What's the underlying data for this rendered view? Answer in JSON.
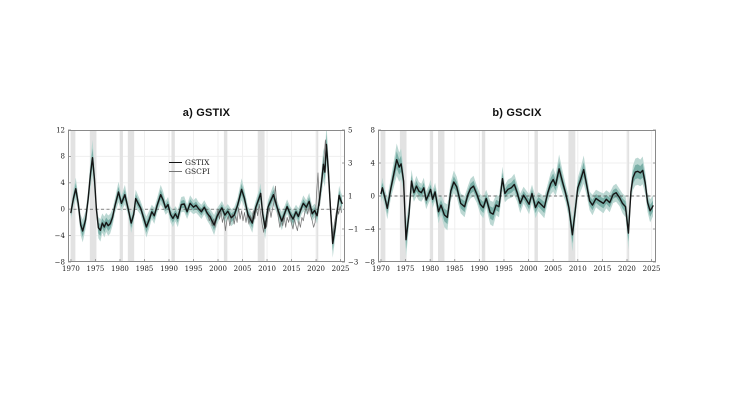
{
  "figure": {
    "background": "#ffffff"
  },
  "colors": {
    "line_black": "#141414",
    "line_gray": "#757575",
    "band_inner": "#7aafa7",
    "band_outer": "#bcd8d3",
    "recession": "#e2e2e2",
    "grid": "#efefef",
    "axis_box": "#8a8a8a",
    "zero_line": "#444444",
    "tick_label": "#1c1c1c"
  },
  "chart_data": [
    {
      "type": "line",
      "title": "a)  GSTIX",
      "x_domain": [
        1969.4,
        2025.9
      ],
      "x_ticks": [
        1970,
        1975,
        1980,
        1985,
        1990,
        1995,
        2000,
        2005,
        2010,
        2015,
        2020,
        2025
      ],
      "y_left": {
        "min": -8,
        "max": 12,
        "ticks": [
          -8,
          -4,
          0,
          4,
          8,
          12
        ]
      },
      "y_right": {
        "min": -3,
        "max": 5,
        "ticks": [
          -3,
          -1,
          1,
          3,
          5
        ]
      },
      "zero_line": true,
      "grid": true,
      "legend": {
        "position": "inside-top-left",
        "labels": [
          "GSTIX",
          "GSCPI"
        ]
      },
      "recessions": [
        [
          1969.95,
          1970.9
        ],
        [
          1973.85,
          1975.2
        ],
        [
          1980.0,
          1980.6
        ],
        [
          1981.6,
          1982.9
        ],
        [
          1990.5,
          1991.2
        ],
        [
          2001.2,
          2001.9
        ],
        [
          2008.1,
          2009.5
        ],
        [
          2020.1,
          2020.45
        ]
      ],
      "series": [
        {
          "name": "GSTIX",
          "axis": "left",
          "color": "#141414",
          "width": 1.4,
          "band": {
            "inner_half": 0.5,
            "inner_scale": 0.12,
            "outer_half": 1.0,
            "outer_scale": 0.22,
            "inner_color": "#7aafa7",
            "outer_color": "#bcd8d3"
          },
          "x": [
            1970.0,
            1970.5,
            1971.0,
            1971.5,
            1972.0,
            1972.4,
            1973.0,
            1973.5,
            1974.0,
            1974.4,
            1974.8,
            1975.2,
            1975.6,
            1976.0,
            1976.4,
            1976.8,
            1977.2,
            1977.6,
            1978.0,
            1978.5,
            1979.0,
            1979.7,
            1980.3,
            1981.0,
            1981.6,
            1982.3,
            1982.8,
            1983.2,
            1983.7,
            1984.2,
            1984.7,
            1985.4,
            1986.0,
            1986.5,
            1987.0,
            1987.6,
            1988.3,
            1988.8,
            1989.3,
            1989.8,
            1990.3,
            1990.8,
            1991.3,
            1991.8,
            1992.5,
            1993.1,
            1993.7,
            1994.3,
            1995.0,
            1995.5,
            1996.0,
            1996.6,
            1997.2,
            1997.8,
            1998.4,
            1999.2,
            1999.8,
            2000.3,
            2000.8,
            2001.4,
            2002.0,
            2002.7,
            2003.3,
            2004.0,
            2004.8,
            2005.4,
            2006.1,
            2007.0,
            2007.7,
            2008.3,
            2008.7,
            2009.1,
            2009.6,
            2010.2,
            2010.7,
            2011.3,
            2012.0,
            2012.6,
            2013.0,
            2013.6,
            2014.1,
            2014.7,
            2015.3,
            2015.9,
            2016.4,
            2017.0,
            2017.4,
            2018.0,
            2018.6,
            2019.2,
            2019.7,
            2020.2,
            2020.7,
            2021.1,
            2021.5,
            2021.8,
            2022.1,
            2022.5,
            2022.9,
            2023.4,
            2023.9,
            2024.3,
            2024.7,
            2025.0,
            2025.3
          ],
          "y": [
            -0.5,
            1.6,
            3.1,
            0.8,
            -2.4,
            -3.3,
            -1.6,
            1.5,
            5.5,
            7.8,
            4.5,
            0.0,
            -2.8,
            -3.2,
            -2.1,
            -2.7,
            -2.0,
            -2.5,
            -2.2,
            -1.2,
            0.6,
            2.6,
            0.9,
            2.2,
            0.3,
            -2.1,
            -0.8,
            1.6,
            0.9,
            0.2,
            -1.0,
            -2.7,
            -1.5,
            -0.4,
            -1.0,
            0.6,
            2.2,
            1.4,
            0.2,
            0.7,
            -0.8,
            -1.4,
            -0.7,
            -1.4,
            0.7,
            0.8,
            -0.4,
            0.9,
            0.3,
            0.6,
            0.1,
            -0.4,
            0.3,
            -0.6,
            -1.2,
            -2.4,
            -1.1,
            -0.4,
            0.2,
            -0.9,
            -0.3,
            -1.3,
            -0.9,
            0.6,
            3.0,
            1.6,
            -0.8,
            -2.1,
            0.3,
            1.5,
            2.4,
            -0.6,
            -2.9,
            0.3,
            1.2,
            2.2,
            0.4,
            -1.0,
            -1.8,
            -0.6,
            0.4,
            -0.7,
            -1.5,
            -0.4,
            -1.1,
            0.2,
            0.9,
            0.3,
            1.2,
            -0.7,
            -0.2,
            -1.0,
            1.5,
            4.0,
            6.8,
            5.6,
            9.8,
            6.0,
            0.5,
            -5.2,
            -2.8,
            -0.3,
            2.1,
            1.4,
            0.9
          ]
        },
        {
          "name": "GSCPI",
          "axis": "right",
          "color": "#757575",
          "width": 0.75,
          "x": [
            1997.9,
            1998.2,
            1998.5,
            1998.8,
            1999.1,
            1999.4,
            1999.7,
            2000.0,
            2000.3,
            2000.6,
            2000.9,
            2001.2,
            2001.5,
            2001.8,
            2002.1,
            2002.4,
            2002.7,
            2003.0,
            2003.3,
            2003.6,
            2003.9,
            2004.2,
            2004.5,
            2004.8,
            2005.1,
            2005.4,
            2005.7,
            2006.0,
            2006.3,
            2006.6,
            2006.9,
            2007.2,
            2007.5,
            2007.8,
            2008.1,
            2008.4,
            2008.7,
            2009.0,
            2009.3,
            2009.6,
            2009.9,
            2010.2,
            2010.5,
            2010.8,
            2011.1,
            2011.4,
            2011.7,
            2012.0,
            2012.3,
            2012.6,
            2012.9,
            2013.2,
            2013.5,
            2013.8,
            2014.1,
            2014.4,
            2014.7,
            2015.0,
            2015.3,
            2015.6,
            2015.9,
            2016.2,
            2016.5,
            2016.8,
            2017.1,
            2017.4,
            2017.7,
            2018.0,
            2018.3,
            2018.6,
            2018.9,
            2019.2,
            2019.5,
            2019.8,
            2020.1,
            2020.4,
            2020.7,
            2021.0,
            2021.3,
            2021.6,
            2021.9,
            2022.2,
            2022.5,
            2022.8,
            2023.1,
            2023.4,
            2023.7,
            2024.0,
            2024.3,
            2024.6,
            2024.9,
            2025.2
          ],
          "y": [
            0.0,
            -0.5,
            -0.2,
            -0.8,
            -0.4,
            -0.9,
            -0.3,
            0.2,
            -0.4,
            0.1,
            -0.6,
            -0.2,
            -1.1,
            -0.5,
            -0.2,
            -0.8,
            -0.3,
            -0.1,
            -0.7,
            -0.2,
            -0.6,
            0.3,
            -0.4,
            0.1,
            -0.5,
            0.0,
            -0.6,
            -0.1,
            -0.7,
            -0.2,
            -0.5,
            0.1,
            -0.4,
            0.3,
            -0.2,
            0.5,
            -0.1,
            -0.7,
            -1.2,
            -0.5,
            -0.9,
            -0.2,
            0.3,
            -0.3,
            0.2,
            0.6,
            1.6,
            0.4,
            -0.3,
            -0.9,
            -0.4,
            -0.8,
            -0.2,
            -0.9,
            -0.3,
            -0.6,
            -0.1,
            -0.7,
            -1.0,
            -0.4,
            -0.8,
            -1.1,
            -0.5,
            -0.9,
            -0.3,
            -0.5,
            0.0,
            0.3,
            -0.1,
            0.4,
            -0.2,
            -0.5,
            -0.9,
            -0.6,
            1.2,
            2.4,
            0.4,
            1.4,
            2.2,
            3.2,
            4.4,
            3.6,
            2.4,
            1.2,
            -0.2,
            -1.4,
            -0.8,
            -0.2,
            0.3,
            -0.1,
            0.4,
            0.0
          ]
        }
      ]
    },
    {
      "type": "line",
      "title": "b) GSCIX",
      "x_domain": [
        1969.4,
        2025.9
      ],
      "x_ticks": [
        1970,
        1975,
        1980,
        1985,
        1990,
        1995,
        2000,
        2005,
        2010,
        2015,
        2020,
        2025
      ],
      "y_left": {
        "min": -8,
        "max": 8,
        "ticks": [
          -8,
          -4,
          0,
          4,
          8
        ]
      },
      "y_right": null,
      "zero_line": true,
      "grid": true,
      "legend": null,
      "recessions": [
        [
          1969.95,
          1970.9
        ],
        [
          1973.85,
          1975.2
        ],
        [
          1980.0,
          1980.6
        ],
        [
          1981.6,
          1982.9
        ],
        [
          1990.5,
          1991.2
        ],
        [
          2001.2,
          2001.9
        ],
        [
          2008.1,
          2009.5
        ],
        [
          2020.1,
          2020.45
        ]
      ],
      "series": [
        {
          "name": "GSCIX",
          "axis": "left",
          "color": "#141414",
          "width": 1.4,
          "band": {
            "inner_half": 0.5,
            "inner_scale": 0.12,
            "outer_half": 1.0,
            "outer_scale": 0.22,
            "inner_color": "#7aafa7",
            "outer_color": "#bcd8d3"
          },
          "x": [
            1970.0,
            1970.3,
            1970.8,
            1971.3,
            1972.0,
            1972.6,
            1973.2,
            1973.7,
            1974.1,
            1974.6,
            1975.1,
            1975.7,
            1976.2,
            1976.7,
            1977.2,
            1977.7,
            1978.2,
            1978.7,
            1979.2,
            1979.7,
            1980.1,
            1980.5,
            1981.0,
            1981.7,
            1982.2,
            1982.9,
            1983.5,
            1984.2,
            1984.8,
            1985.4,
            1986.2,
            1987.0,
            1987.7,
            1988.2,
            1988.8,
            1989.5,
            1990.2,
            1990.8,
            1991.4,
            1992.2,
            1992.8,
            1993.4,
            1994.0,
            1994.7,
            1995.2,
            1995.8,
            1996.5,
            1997.1,
            1997.7,
            1998.3,
            1999.0,
            1999.5,
            2000.1,
            2000.7,
            2001.4,
            2002.0,
            2002.7,
            2003.2,
            2003.9,
            2004.5,
            2005.0,
            2005.5,
            2006.2,
            2006.9,
            2007.5,
            2008.2,
            2008.9,
            2009.4,
            2010.0,
            2010.6,
            2011.2,
            2011.8,
            2012.4,
            2013.0,
            2013.7,
            2014.4,
            2015.2,
            2015.8,
            2016.5,
            2017.2,
            2017.8,
            2018.5,
            2019.1,
            2019.7,
            2020.3,
            2020.8,
            2021.2,
            2021.7,
            2022.2,
            2022.7,
            2023.2,
            2023.7,
            2024.2,
            2024.7,
            2025.1,
            2025.3
          ],
          "y": [
            0.3,
            1.0,
            -0.2,
            -1.5,
            0.9,
            2.6,
            4.4,
            3.5,
            3.9,
            1.8,
            -5.3,
            -2.2,
            1.8,
            0.4,
            1.2,
            0.6,
            0.4,
            1.0,
            -0.5,
            0.2,
            0.8,
            -0.4,
            0.5,
            -1.9,
            -1.1,
            -2.3,
            -2.6,
            0.6,
            1.7,
            1.1,
            -0.9,
            -1.3,
            0.2,
            0.9,
            1.2,
            0.2,
            -1.0,
            -1.4,
            -0.3,
            -2.0,
            -2.2,
            -1.1,
            -1.3,
            2.1,
            0.3,
            0.8,
            1.0,
            1.4,
            0.4,
            -0.9,
            0.1,
            -0.4,
            -1.0,
            0.3,
            -1.4,
            -0.7,
            -1.1,
            -1.4,
            0.4,
            1.5,
            2.0,
            1.3,
            3.3,
            1.7,
            0.4,
            -1.4,
            -4.7,
            -2.2,
            1.0,
            2.0,
            3.2,
            1.4,
            -0.6,
            -1.1,
            -0.3,
            -0.6,
            -0.9,
            -0.4,
            -0.8,
            0.2,
            0.4,
            -0.2,
            -0.9,
            -1.3,
            -4.5,
            0.5,
            2.2,
            2.9,
            3.0,
            2.8,
            3.1,
            1.6,
            -0.8,
            -1.8,
            -1.4,
            -1.2
          ]
        }
      ]
    }
  ]
}
